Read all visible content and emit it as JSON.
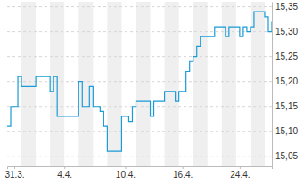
{
  "chart_data": {
    "type": "line",
    "color": "#1a9bd7",
    "grid": true,
    "categories": [
      null,
      null,
      "31.3.",
      null,
      null,
      null,
      null,
      null,
      null,
      null,
      null,
      null,
      null,
      null,
      null,
      null,
      "4.4.",
      null,
      null,
      null,
      null,
      null,
      null,
      null,
      null,
      null,
      null,
      null,
      null,
      null,
      null,
      null,
      null,
      "10.4.",
      null,
      null,
      null,
      null,
      null,
      null,
      null,
      null,
      null,
      null,
      null,
      null,
      null,
      null,
      null,
      "16.4.",
      null,
      null,
      null,
      null,
      null,
      null,
      null,
      null,
      null,
      null,
      null,
      null,
      null,
      null,
      null,
      "24.4.",
      null,
      null,
      null,
      null,
      null,
      null,
      null,
      null,
      null
    ],
    "values": [
      15.11,
      15.15,
      15.15,
      15.21,
      15.19,
      15.19,
      15.19,
      15.19,
      15.21,
      15.21,
      15.21,
      15.21,
      15.18,
      15.21,
      15.13,
      15.13,
      15.13,
      15.13,
      15.13,
      15.13,
      15.2,
      15.15,
      15.15,
      15.19,
      15.15,
      15.15,
      15.14,
      15.11,
      15.06,
      15.06,
      15.06,
      15.06,
      15.13,
      15.13,
      15.12,
      15.15,
      15.16,
      15.16,
      15.16,
      15.16,
      15.13,
      15.16,
      15.16,
      15.16,
      15.18,
      15.18,
      15.18,
      15.16,
      15.18,
      15.18,
      15.22,
      15.24,
      15.25,
      15.27,
      15.29,
      15.29,
      15.29,
      15.29,
      15.31,
      15.31,
      15.31,
      15.29,
      15.31,
      15.31,
      15.31,
      15.29,
      15.31,
      15.3,
      15.31,
      15.34,
      15.34,
      15.34,
      15.33,
      15.3,
      15.32
    ],
    "ylim": [
      15.03,
      15.36
    ],
    "yticks": [
      {
        "value": 15.05,
        "label": "15,05"
      },
      {
        "value": 15.1,
        "label": "15,10"
      },
      {
        "value": 15.15,
        "label": "15,15"
      },
      {
        "value": 15.2,
        "label": "15,20"
      },
      {
        "value": 15.25,
        "label": "15,25"
      },
      {
        "value": 15.3,
        "label": "15,30"
      },
      {
        "value": 15.35,
        "label": "15,35"
      }
    ]
  }
}
